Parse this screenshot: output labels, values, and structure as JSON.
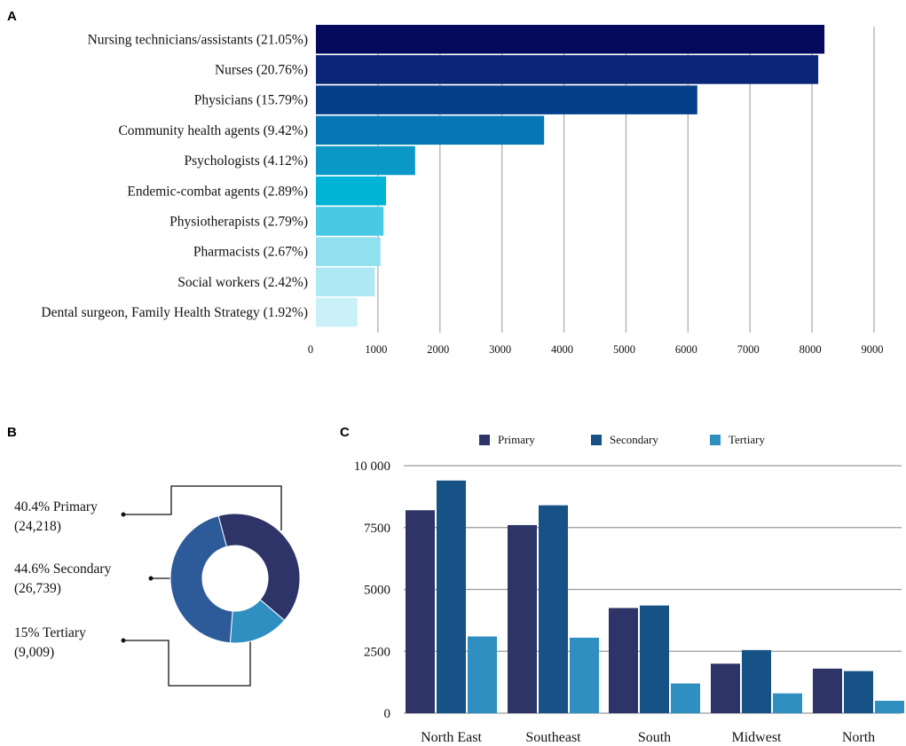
{
  "panels": {
    "a": "A",
    "b": "B",
    "c": "C"
  },
  "chart_data": [
    {
      "type": "bar",
      "orientation": "horizontal",
      "panel": "A",
      "categories": [
        "Nursing technicians/assistants (21.05%)",
        "Nurses (20.76%)",
        "Physicians (15.79%)",
        "Community health agents (9.42%)",
        "Psychologists (4.12%)",
        "Endemic-combat agents (2.89%)",
        "Physiotherapists (2.79%)",
        "Pharmacists (2.67%)",
        "Social workers (2.42%)",
        "Dental surgeon, Family Health Strategy (1.92%)"
      ],
      "values": [
        8200,
        8100,
        6150,
        3680,
        1600,
        1130,
        1090,
        1040,
        950,
        670
      ],
      "colors": [
        "#05095c",
        "#0c2677",
        "#053f8b",
        "#0677b5",
        "#0998c8",
        "#00b4d8",
        "#48cae4",
        "#90e0ef",
        "#ade8f4",
        "#caf0f8"
      ],
      "xticks": [
        0,
        1000,
        2000,
        3000,
        4000,
        5000,
        6000,
        7000,
        8000,
        9000
      ],
      "xlim": [
        0,
        9000
      ],
      "grid": true
    },
    {
      "type": "pie",
      "donut": true,
      "panel": "B",
      "slices": [
        {
          "name": "Primary",
          "percent": 40.4,
          "count": 24218,
          "color": "#2e3468",
          "label": "40.4% Primary",
          "sublabel": "(24,218)"
        },
        {
          "name": "Tertiary",
          "percent": 15,
          "count": 9009,
          "color": "#2e8fc0",
          "label": "15% Tertiary",
          "sublabel": "(9,009)"
        },
        {
          "name": "Secondary",
          "percent": 44.6,
          "count": 26739,
          "color": "#2d5b9a",
          "label": "44.6% Secondary",
          "sublabel": "(26,739)"
        }
      ]
    },
    {
      "type": "bar",
      "panel": "C",
      "categories": [
        "North East",
        "Southeast",
        "South",
        "Midwest",
        "North"
      ],
      "series": [
        {
          "name": "Primary",
          "color": "#2e3468",
          "values": [
            8200,
            7600,
            4250,
            2000,
            1800
          ]
        },
        {
          "name": "Secondary",
          "color": "#175287",
          "values": [
            9400,
            8400,
            4350,
            2550,
            1700
          ]
        },
        {
          "name": "Tertiary",
          "color": "#2e8fc0",
          "values": [
            3100,
            3050,
            1200,
            800,
            500
          ]
        }
      ],
      "yticks": [
        0,
        2500,
        5000,
        7500,
        10000
      ],
      "ytick_labels": [
        "0",
        "2500",
        "5000",
        "7500",
        "10 000"
      ],
      "ylim": [
        0,
        10000
      ],
      "legend": "top",
      "grid": true
    }
  ]
}
